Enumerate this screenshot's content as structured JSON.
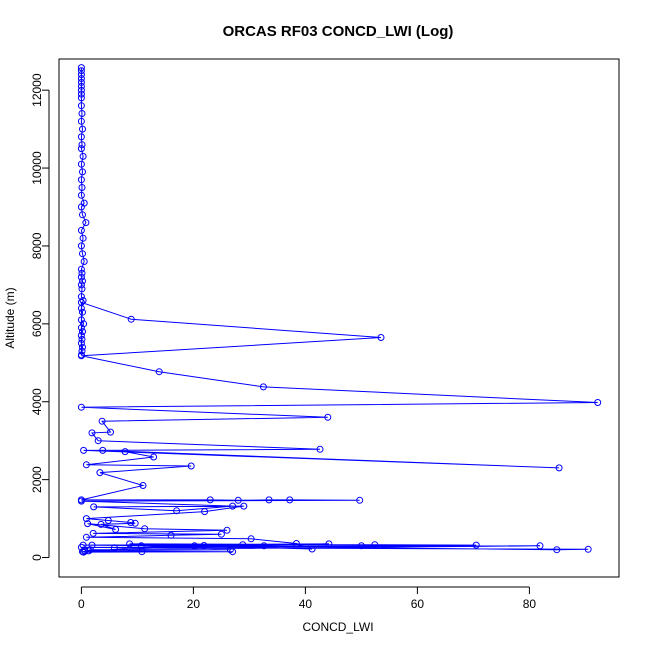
{
  "chart_data": {
    "type": "line",
    "title": "ORCAS RF03 CONCD_LWI (Log)",
    "xlabel": "CONCD_LWI",
    "ylabel": "Altitude (m)",
    "xlim": [
      -4,
      96
    ],
    "ylim": [
      -500,
      12800
    ],
    "xticks": [
      0,
      20,
      40,
      60,
      80
    ],
    "yticks": [
      0,
      2000,
      4000,
      6000,
      8000,
      10000,
      12000
    ],
    "grid": false,
    "legend": "none",
    "color": "#0000ff",
    "series": [
      {
        "x": [
          0,
          0,
          0,
          0,
          0,
          0,
          0,
          0,
          0,
          0,
          0.1,
          0,
          0.2,
          0,
          0.1,
          0,
          0.3,
          0,
          0.2,
          0,
          0.1,
          0,
          0.5,
          0,
          0.2,
          0.8,
          0,
          0.3,
          0,
          0.2,
          0.5,
          0,
          0.1,
          0,
          0.2,
          0,
          0.1,
          0,
          0.3,
          0,
          0.2,
          0,
          0.4,
          0,
          0.2,
          0,
          0.1,
          0,
          0.2,
          0.1,
          0,
          0,
          8.9,
          53.5,
          0,
          13.9,
          32.5,
          92.2,
          0,
          44,
          3.7,
          5.2,
          1.9,
          3,
          42.6,
          0.4,
          85.3,
          3.8,
          7.8,
          12.9,
          0.9,
          19.6,
          3.3,
          11,
          0,
          23,
          28,
          33.5,
          37.2,
          49.7,
          0,
          27,
          17,
          2.2,
          29,
          22,
          0.9,
          4.8,
          8.8,
          9.6,
          3.5,
          6.1,
          1.1,
          11.3,
          26,
          2.1,
          25,
          16,
          0.9,
          30.3,
          38.4,
          41.2,
          8.6,
          52.4,
          70.5,
          50,
          32.6,
          5.9,
          28.8,
          1.9,
          21.9,
          10.7,
          26.6,
          0.6,
          20.2,
          44.2,
          0.3,
          84.9,
          90.5,
          0,
          81.9,
          1.6,
          0.4,
          27,
          0.6,
          10.8,
          1.3,
          0.2
        ],
        "y": [
          12580,
          12500,
          12400,
          12300,
          12200,
          12100,
          12000,
          11900,
          11800,
          11600,
          11400,
          11200,
          11000,
          10800,
          10600,
          10500,
          10300,
          10100,
          9900,
          9700,
          9500,
          9300,
          9100,
          9000,
          8800,
          8600,
          8400,
          8200,
          8000,
          7800,
          7600,
          7400,
          7300,
          7200,
          7100,
          7000,
          6900,
          6700,
          6600,
          6400,
          6300,
          6100,
          6000,
          5900,
          5800,
          5700,
          5600,
          5500,
          5400,
          5300,
          5200,
          6550,
          6120,
          5650,
          5180,
          4770,
          4380,
          3980,
          3860,
          3600,
          3500,
          3220,
          3200,
          3000,
          2780,
          2750,
          2300,
          2750,
          2720,
          2580,
          2380,
          2350,
          2180,
          1850,
          1480,
          1480,
          1470,
          1480,
          1480,
          1470,
          1450,
          1320,
          1200,
          1300,
          1320,
          1180,
          1000,
          950,
          900,
          880,
          850,
          720,
          870,
          740,
          700,
          620,
          600,
          570,
          520,
          480,
          360,
          220,
          350,
          330,
          320,
          300,
          300,
          250,
          330,
          320,
          310,
          300,
          200,
          170,
          300,
          350,
          320,
          200,
          210,
          260,
          300,
          200,
          140,
          150,
          160,
          150,
          170,
          150
        ]
      }
    ]
  }
}
